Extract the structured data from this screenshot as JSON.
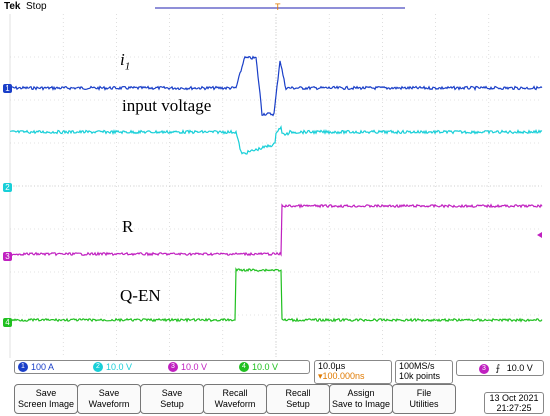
{
  "header": {
    "brand": "Tek",
    "state": "Stop",
    "trigger_marker": "T"
  },
  "waveform_labels": {
    "i1": "i",
    "i1_sub": "1",
    "input_voltage": "input voltage",
    "r": "R",
    "qen": "Q-EN"
  },
  "channels": [
    {
      "number": "1",
      "scale": "100 A",
      "color": "#1a3fc8"
    },
    {
      "number": "2",
      "scale": "10.0 V",
      "color": "#18cfd8"
    },
    {
      "number": "3",
      "scale": "10.0 V",
      "color": "#c020c0"
    },
    {
      "number": "4",
      "scale": "10.0 V",
      "color": "#20c020"
    }
  ],
  "timebase": {
    "per_div": "10.0µs",
    "position": "▾100.000ns"
  },
  "acquisition": {
    "rate": "100MS/s",
    "points": "10k points"
  },
  "trigger": {
    "channel": "3",
    "slope": "⨍",
    "level": "10.0 V"
  },
  "buttons": [
    {
      "line1": "Save",
      "line2": "Screen Image"
    },
    {
      "line1": "Save",
      "line2": "Waveform"
    },
    {
      "line1": "Save",
      "line2": "Setup"
    },
    {
      "line1": "Recall",
      "line2": "Waveform"
    },
    {
      "line1": "Recall",
      "line2": "Setup"
    },
    {
      "line1": "Assign",
      "line2": "Save to Image"
    },
    {
      "line1": "File",
      "line2": "Utilities"
    }
  ],
  "datetime": {
    "date": "13 Oct  2021",
    "time": "21:27:25"
  }
}
